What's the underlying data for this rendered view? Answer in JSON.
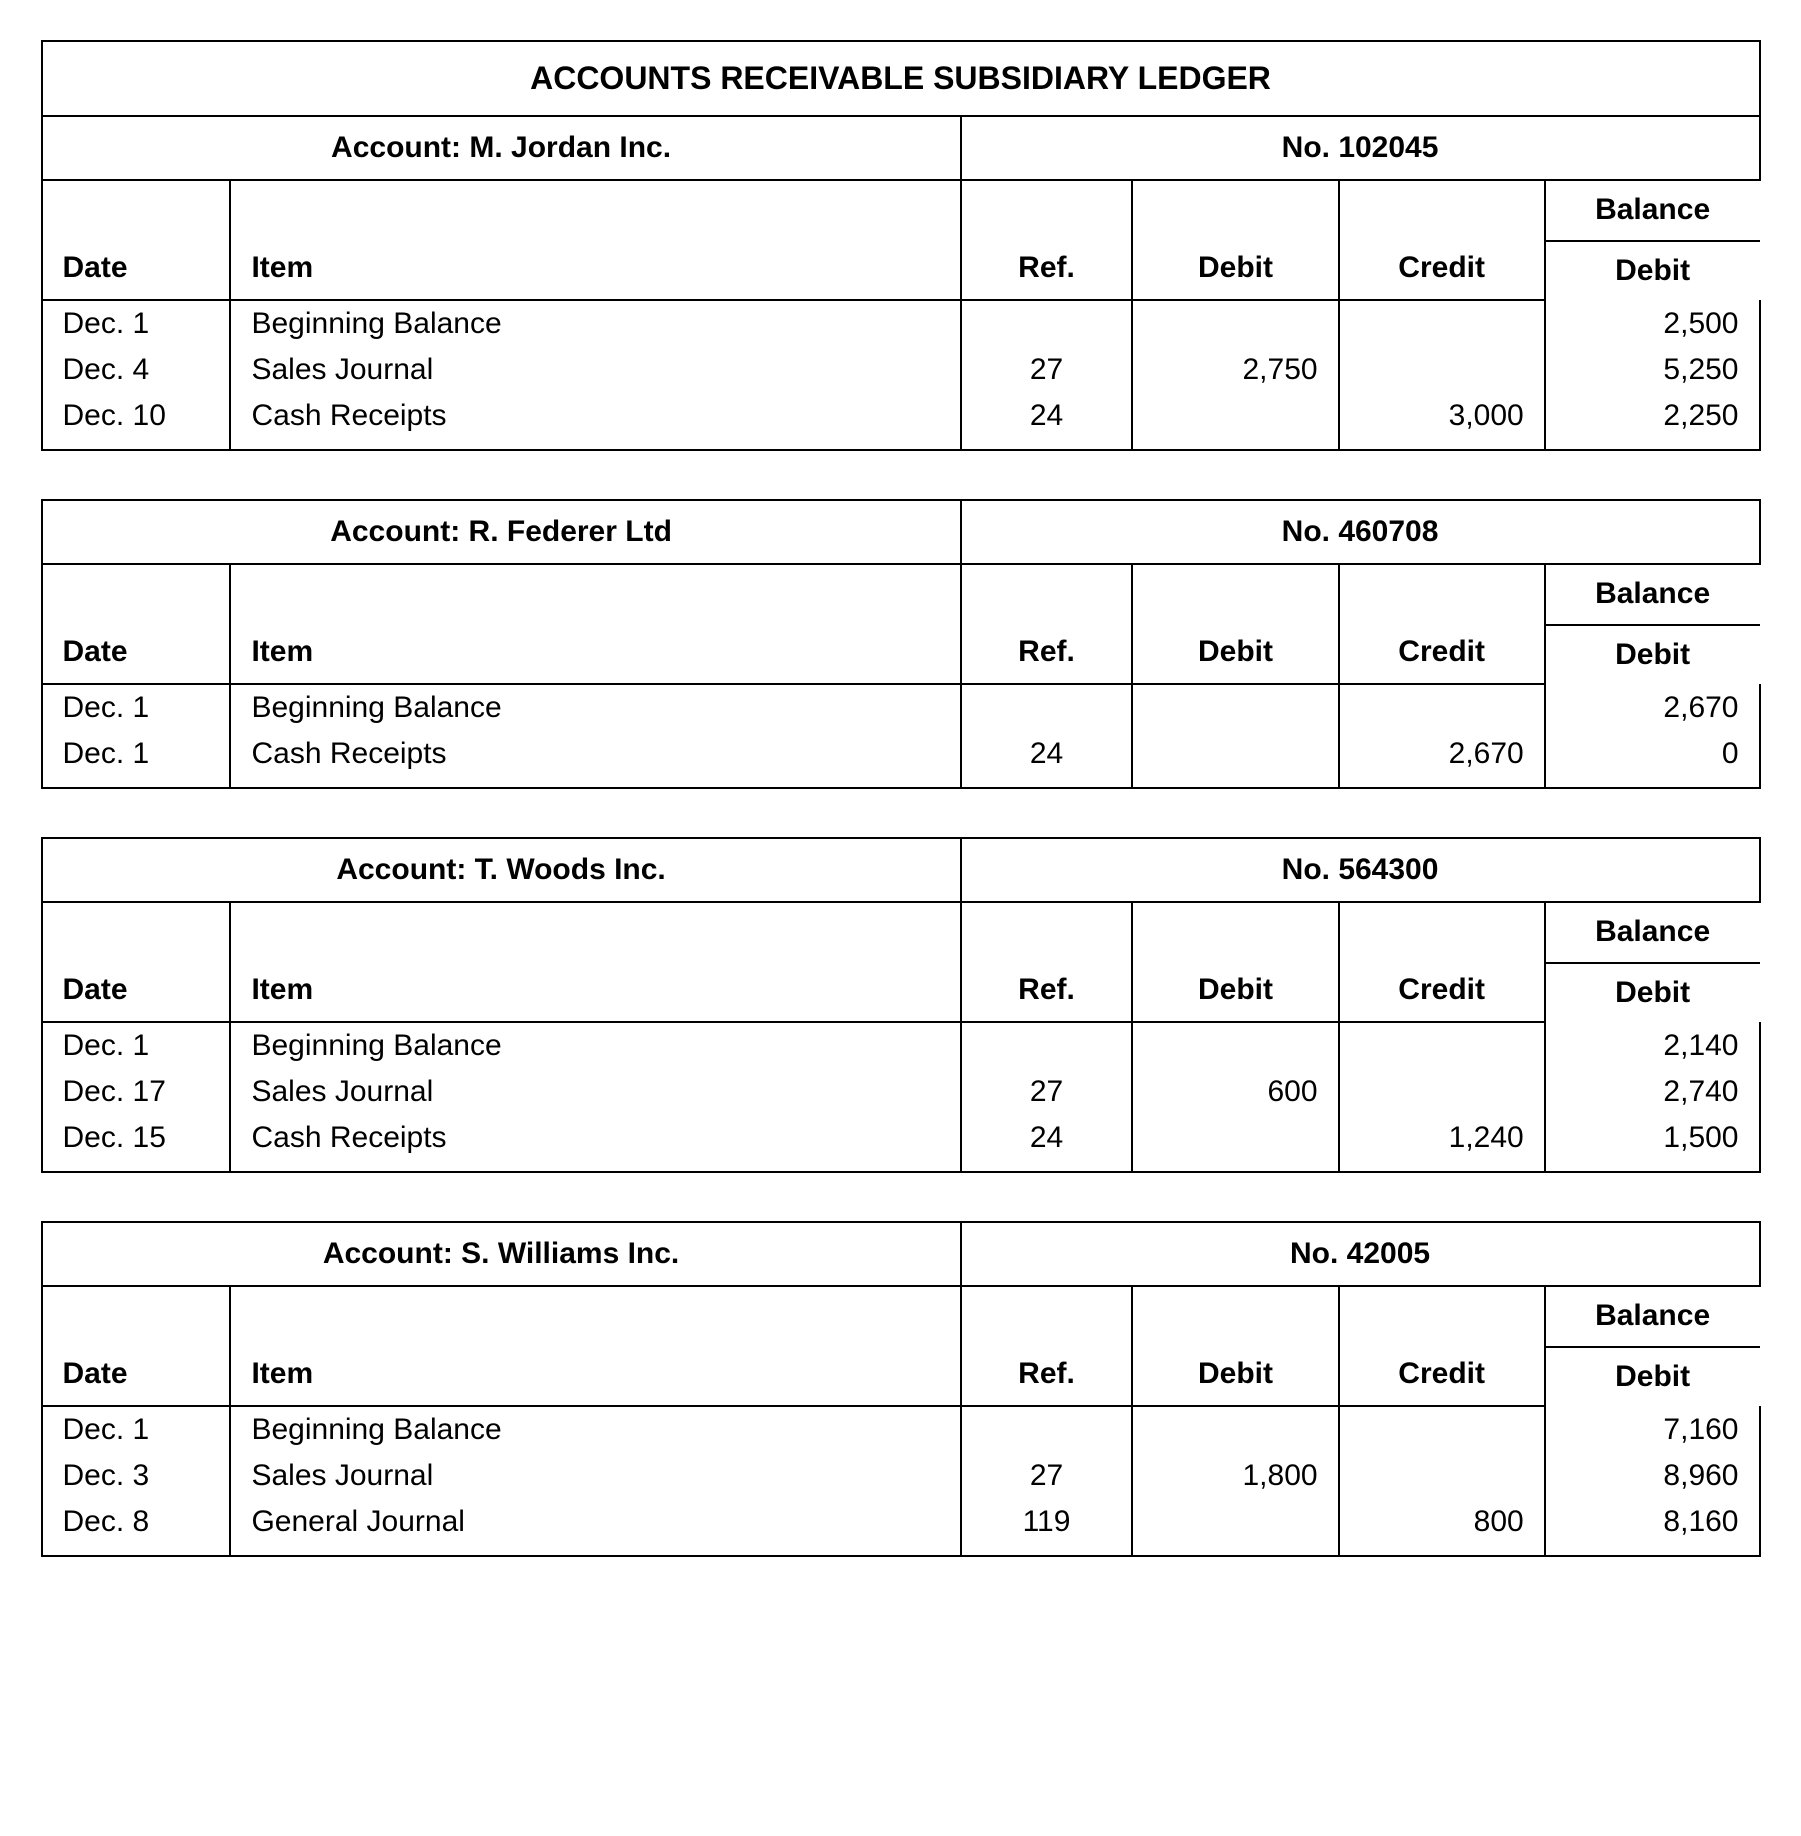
{
  "page": {
    "title": "ACCOUNTS RECEIVABLE SUBSIDIARY LEDGER",
    "background_color": "#ffffff",
    "text_color": "#000000",
    "border_color": "#000000",
    "account_label_prefix": "Account: ",
    "number_label_prefix": "No. "
  },
  "columns": {
    "date": "Date",
    "item": "Item",
    "ref": "Ref.",
    "debit": "Debit",
    "credit": "Credit",
    "balance_top": "Balance",
    "balance_bottom": "Debit",
    "widths_pct": [
      11,
      42.5,
      10,
      12,
      12,
      12.5
    ]
  },
  "typography": {
    "title_fontsize_pt": 24,
    "header_fontsize_pt": 22,
    "body_fontsize_pt": 22,
    "font_family": "Arial"
  },
  "accounts": [
    {
      "name": "M. Jordan Inc.",
      "number": "102045",
      "rows": [
        {
          "date": "Dec. 1",
          "item": "Beginning Balance",
          "ref": "",
          "debit": "",
          "credit": "",
          "balance": "2,500"
        },
        {
          "date": "Dec. 4",
          "item": "Sales Journal",
          "ref": "27",
          "debit": "2,750",
          "credit": "",
          "balance": "5,250"
        },
        {
          "date": "Dec. 10",
          "item": "Cash Receipts",
          "ref": "24",
          "debit": "",
          "credit": "3,000",
          "balance": "2,250"
        }
      ]
    },
    {
      "name": "R. Federer Ltd",
      "number": "460708",
      "rows": [
        {
          "date": "Dec. 1",
          "item": "Beginning Balance",
          "ref": "",
          "debit": "",
          "credit": "",
          "balance": "2,670"
        },
        {
          "date": "Dec. 1",
          "item": "Cash Receipts",
          "ref": "24",
          "debit": "",
          "credit": "2,670",
          "balance": "0"
        }
      ]
    },
    {
      "name": "T. Woods Inc.",
      "number": "564300",
      "rows": [
        {
          "date": "Dec. 1",
          "item": "Beginning Balance",
          "ref": "",
          "debit": "",
          "credit": "",
          "balance": "2,140"
        },
        {
          "date": "Dec. 17",
          "item": "Sales Journal",
          "ref": "27",
          "debit": "600",
          "credit": "",
          "balance": "2,740"
        },
        {
          "date": "Dec. 15",
          "item": "Cash Receipts",
          "ref": "24",
          "debit": "",
          "credit": "1,240",
          "balance": "1,500"
        }
      ]
    },
    {
      "name": "S. Williams Inc.",
      "number": "42005",
      "rows": [
        {
          "date": "Dec. 1",
          "item": "Beginning Balance",
          "ref": "",
          "debit": "",
          "credit": "",
          "balance": "7,160"
        },
        {
          "date": "Dec. 3",
          "item": "Sales Journal",
          "ref": "27",
          "debit": "1,800",
          "credit": "",
          "balance": "8,960"
        },
        {
          "date": "Dec. 8",
          "item": "General Journal",
          "ref": "119",
          "debit": "",
          "credit": "800",
          "balance": "8,160"
        }
      ]
    }
  ]
}
